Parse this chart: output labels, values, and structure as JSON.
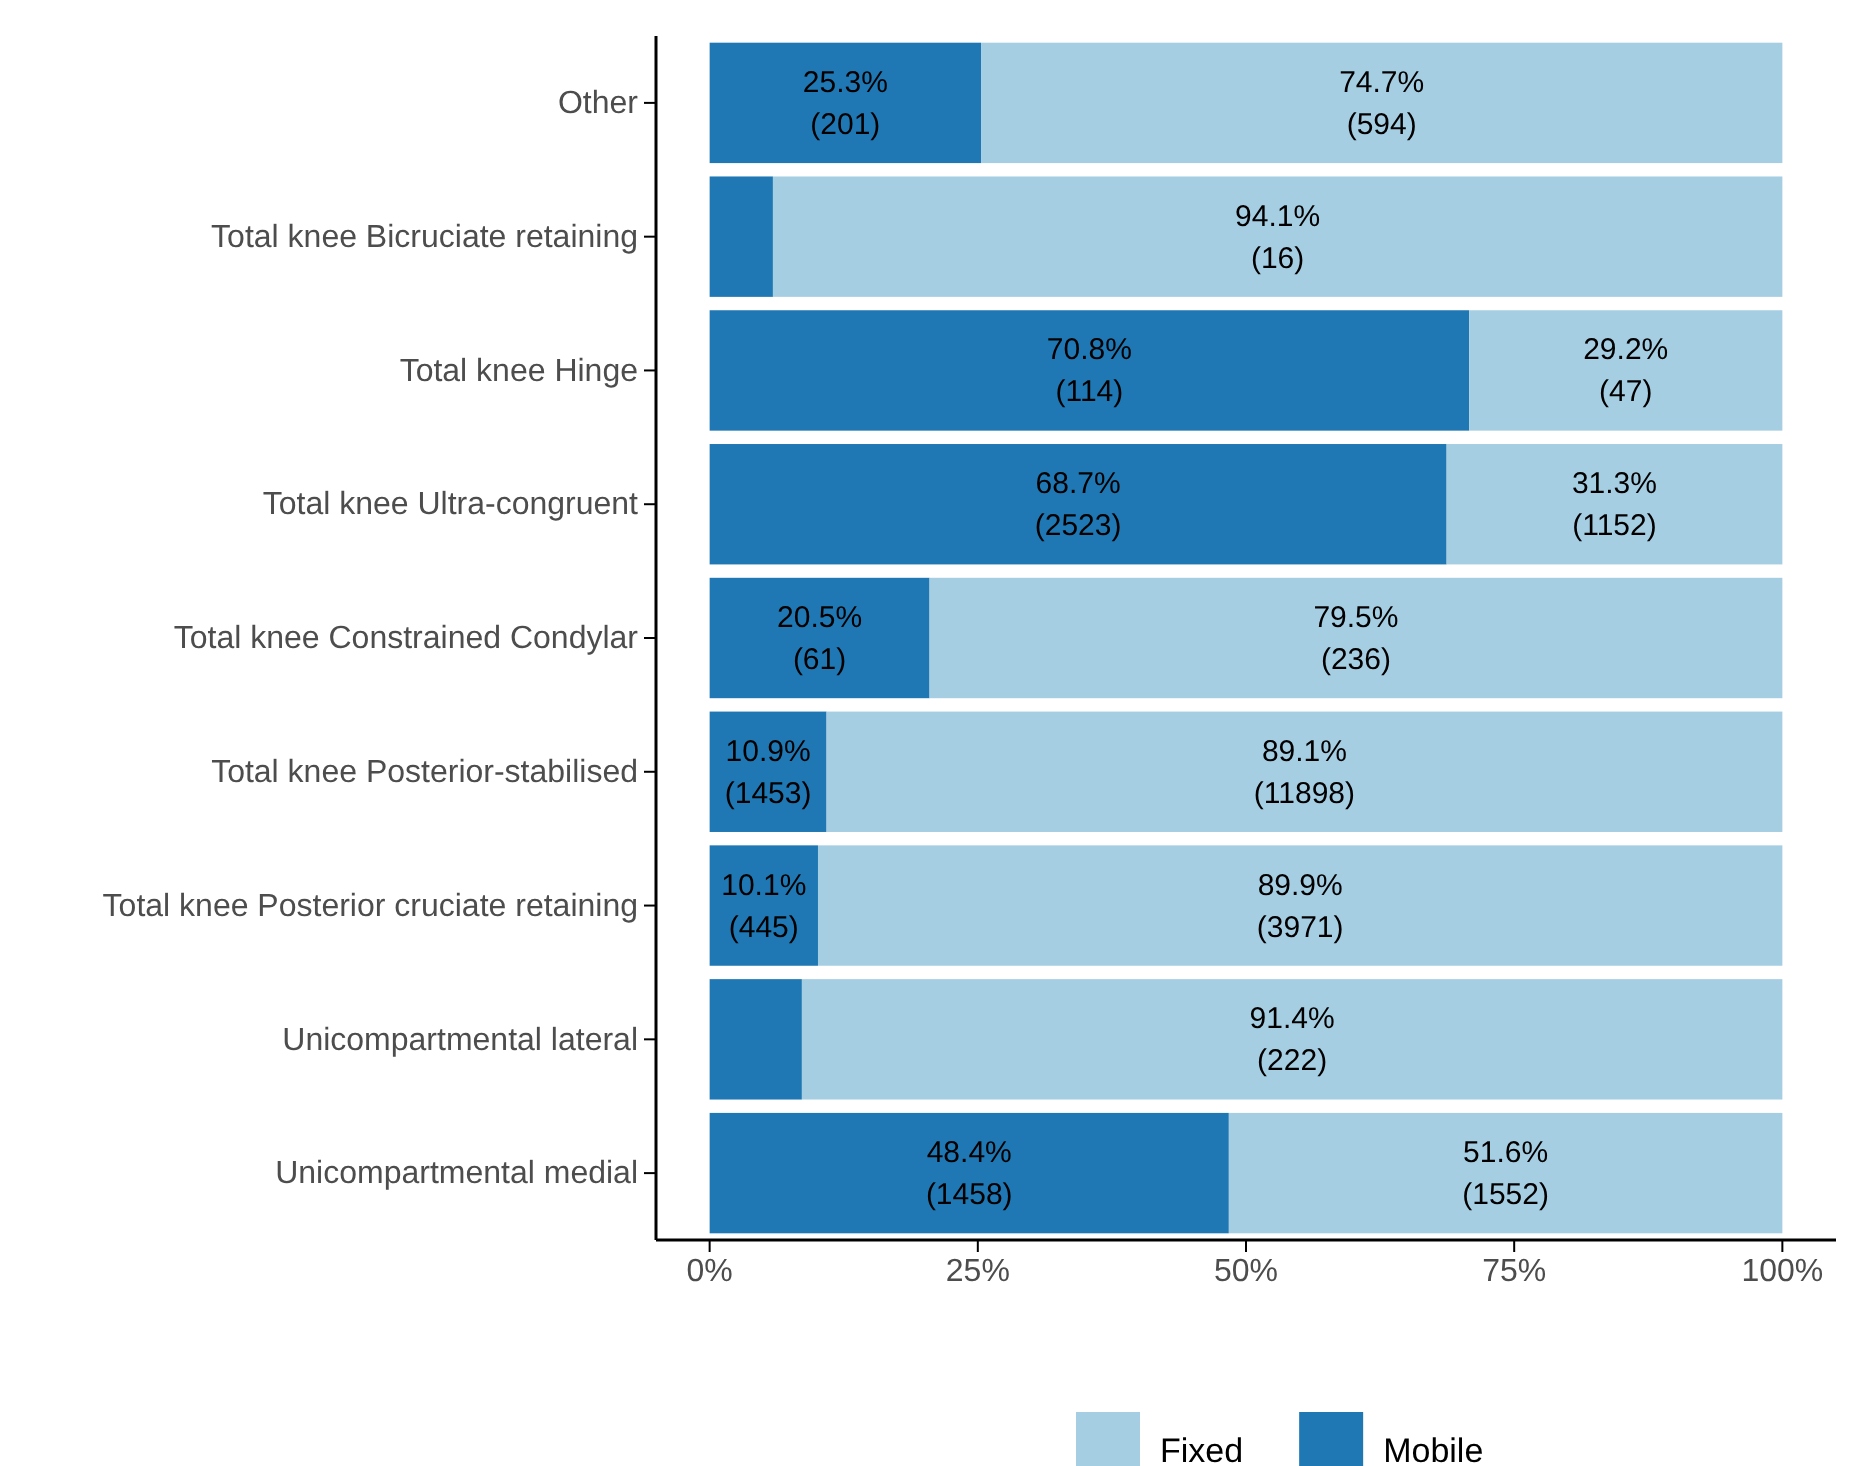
{
  "chart_data": {
    "type": "bar",
    "orientation": "horizontal",
    "stacked": true,
    "legend": "bottom",
    "grid": false,
    "categories": [
      "Other",
      "Total knee Bicruciate retaining",
      "Total knee Hinge",
      "Total knee Ultra-congruent",
      "Total knee Constrained Condylar",
      "Total knee Posterior-stabilised",
      "Total knee Posterior cruciate retaining",
      "Unicompartmental lateral",
      "Unicompartmental medial"
    ],
    "xlim": [
      -5,
      105
    ],
    "xticks": [
      {
        "value": 0,
        "label": "0%"
      },
      {
        "value": 25,
        "label": "25%"
      },
      {
        "value": 50,
        "label": "50%"
      },
      {
        "value": 75,
        "label": "75%"
      },
      {
        "value": 100,
        "label": "100%"
      }
    ],
    "series": [
      {
        "name": "Mobile",
        "color": "#1f78b4",
        "values": [
          25.3,
          5.9,
          70.8,
          68.7,
          20.5,
          10.9,
          10.1,
          8.6,
          48.4
        ],
        "value_labels": [
          "25.3%\n(201)",
          null,
          "70.8%\n(114)",
          "68.7%\n(2523)",
          "20.5%\n(61)",
          "10.9%\n(1453)",
          "10.1%\n(445)",
          null,
          "48.4%\n(1458)"
        ]
      },
      {
        "name": "Fixed",
        "color": "#a6cee3",
        "values": [
          74.7,
          94.1,
          29.2,
          31.3,
          79.5,
          89.1,
          89.9,
          91.4,
          51.6
        ],
        "value_labels": [
          "74.7%\n(594)",
          "94.1%\n(16)",
          "29.2%\n(47)",
          "31.3%\n(1152)",
          "79.5%\n(236)",
          "89.1%\n(11898)",
          "89.9%\n(3971)",
          "91.4%\n(222)",
          "51.6%\n(1552)"
        ]
      }
    ]
  }
}
